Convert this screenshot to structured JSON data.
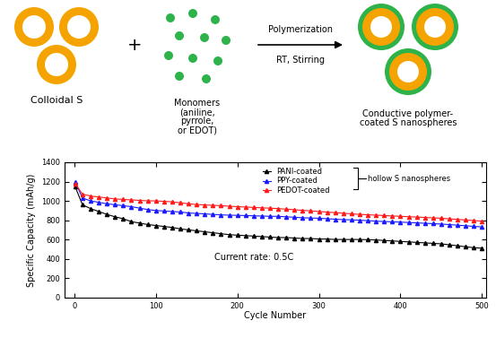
{
  "schematic": {
    "left_label": "Colloidal S",
    "plus": "+",
    "monomer_label": "Monomers\n(aniline,\npyrrole,\nor EDOT)",
    "arrow_top": "Polymerization",
    "arrow_bottom": "RT, Stirring",
    "right_label": "Conductive polymer-\ncoated S nanospheres"
  },
  "chart_data": {
    "type": "scatter",
    "x_label": "Cycle Number",
    "y_label": "Specific Capacity (mAh/g)",
    "annotations": [
      "Current rate: 0.5C"
    ],
    "legend_group_label": "hollow S nanospheres",
    "legend": "upper center",
    "xlim": [
      -12,
      505
    ],
    "xticks": [
      0,
      100,
      200,
      300,
      400,
      500
    ],
    "ylim": [
      0,
      1400
    ],
    "yticks": [
      0,
      200,
      400,
      600,
      800,
      1000,
      1200,
      1400
    ],
    "x": [
      1,
      10,
      20,
      30,
      40,
      50,
      60,
      70,
      80,
      90,
      100,
      110,
      120,
      130,
      140,
      150,
      160,
      170,
      180,
      190,
      200,
      210,
      220,
      230,
      240,
      250,
      260,
      270,
      280,
      290,
      300,
      310,
      320,
      330,
      340,
      350,
      360,
      370,
      380,
      390,
      400,
      410,
      420,
      430,
      440,
      450,
      460,
      470,
      480,
      490,
      500
    ],
    "series": [
      {
        "name": "PANI-coated",
        "color": "#000000",
        "marker": "^",
        "line_style": "solid",
        "values": [
          1150,
          960,
          920,
          890,
          860,
          835,
          815,
          785,
          770,
          755,
          745,
          735,
          725,
          710,
          700,
          690,
          680,
          670,
          660,
          650,
          645,
          640,
          635,
          630,
          625,
          620,
          620,
          615,
          610,
          610,
          605,
          605,
          600,
          600,
          600,
          600,
          598,
          595,
          590,
          585,
          580,
          575,
          570,
          565,
          560,
          555,
          545,
          535,
          525,
          515,
          510
        ]
      },
      {
        "name": "PPY-coated",
        "color": "#1a1aff",
        "marker": "^",
        "line_style": "solid",
        "values": [
          1200,
          1030,
          1000,
          985,
          970,
          960,
          950,
          940,
          925,
          910,
          900,
          895,
          890,
          885,
          875,
          870,
          865,
          860,
          855,
          852,
          850,
          848,
          845,
          843,
          840,
          840,
          835,
          830,
          825,
          822,
          820,
          815,
          810,
          806,
          803,
          800,
          795,
          790,
          786,
          783,
          780,
          776,
          772,
          768,
          764,
          760,
          754,
          748,
          742,
          736,
          730
        ]
      },
      {
        "name": "PEDOT-coated",
        "color": "#ff1a1a",
        "marker": "^",
        "line_style": "solid",
        "values": [
          1180,
          1070,
          1050,
          1040,
          1030,
          1020,
          1015,
          1010,
          1005,
          1000,
          1000,
          995,
          990,
          980,
          970,
          962,
          958,
          954,
          950,
          945,
          940,
          936,
          932,
          928,
          924,
          920,
          914,
          908,
          902,
          896,
          890,
          884,
          878,
          872,
          866,
          860,
          856,
          852,
          848,
          844,
          840,
          836,
          832,
          828,
          824,
          820,
          814,
          808,
          802,
          796,
          790
        ]
      }
    ]
  }
}
